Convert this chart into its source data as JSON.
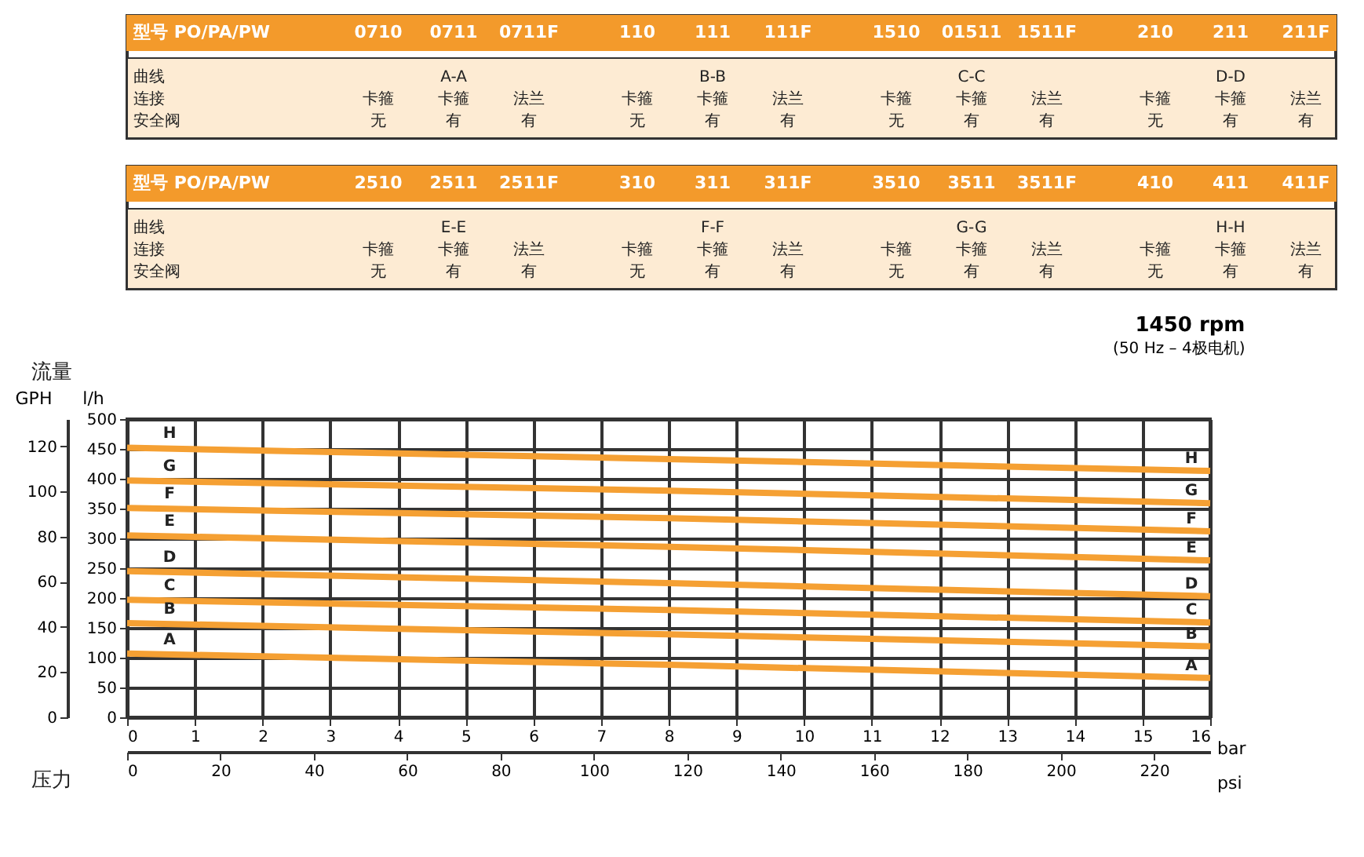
{
  "chart_data": [
    {
      "type": "other",
      "xlabel": "型号 PO/PA/PW",
      "categories": [
        "0710",
        "0711",
        "0711F",
        "110",
        "111",
        "111F",
        "1510",
        "01511",
        "1511F",
        "210",
        "211",
        "211F"
      ],
      "y_categories": [
        "曲线",
        "连接",
        "安全阀"
      ],
      "color": "#f39a2b",
      "cell_labels": [
        [
          null,
          "A-A",
          null,
          null,
          "B-B",
          null,
          null,
          "C-C",
          null,
          null,
          "D-D",
          null
        ],
        [
          "卡箍",
          "卡箍",
          "法兰",
          "卡箍",
          "卡箍",
          "法兰",
          "卡箍",
          "卡箍",
          "法兰",
          "卡箍",
          "卡箍",
          "法兰"
        ],
        [
          "无",
          "有",
          "有",
          "无",
          "有",
          "有",
          "无",
          "有",
          "有",
          "无",
          "有",
          "有"
        ]
      ]
    },
    {
      "type": "other",
      "xlabel": "型号 PO/PA/PW",
      "categories": [
        "2510",
        "2511",
        "2511F",
        "310",
        "311",
        "311F",
        "3510",
        "3511",
        "3511F",
        "410",
        "411",
        "411F"
      ],
      "y_categories": [
        "曲线",
        "连接",
        "安全阀"
      ],
      "color": "#f39a2b",
      "cell_labels": [
        [
          null,
          "E-E",
          null,
          null,
          "F-F",
          null,
          null,
          "G-G",
          null,
          null,
          "H-H",
          null
        ],
        [
          "卡箍",
          "卡箍",
          "法兰",
          "卡箍",
          "卡箍",
          "法兰",
          "卡箍",
          "卡箍",
          "法兰",
          "卡箍",
          "卡箍",
          "法兰"
        ],
        [
          "无",
          "有",
          "有",
          "无",
          "有",
          "有",
          "无",
          "有",
          "有",
          "无",
          "有",
          "有"
        ]
      ]
    },
    {
      "type": "line",
      "title": "1450 rpm",
      "subtitle": "(50 Hz – 4极电机)",
      "xlabel": "bar",
      "x2label": "psi",
      "ylabel": "l/h",
      "y2label": "GPH",
      "annotations": [
        "流量",
        "压力"
      ],
      "x": [
        0,
        8,
        16
      ],
      "xlim": [
        0,
        16
      ],
      "xticks": [
        0,
        1,
        2,
        3,
        4,
        5,
        6,
        7,
        8,
        9,
        10,
        11,
        12,
        13,
        14,
        15,
        16
      ],
      "x2lim": [
        0,
        232
      ],
      "x2ticks": [
        0,
        20,
        40,
        60,
        80,
        100,
        120,
        140,
        160,
        180,
        200,
        220
      ],
      "ylim": [
        0,
        500
      ],
      "yticks": [
        0,
        50,
        100,
        150,
        200,
        250,
        300,
        350,
        400,
        450,
        500
      ],
      "y2lim": [
        0,
        132
      ],
      "y2ticks": [
        0,
        20,
        40,
        60,
        80,
        100,
        120
      ],
      "grid": true,
      "legend": false,
      "series": [
        {
          "name": "A",
          "color": "#f5a033",
          "values": [
            107,
            88,
            66
          ]
        },
        {
          "name": "B",
          "color": "#f5a033",
          "values": [
            158,
            139,
            119
          ]
        },
        {
          "name": "C",
          "color": "#f5a033",
          "values": [
            197,
            180,
            159
          ]
        },
        {
          "name": "D",
          "color": "#f5a033",
          "values": [
            245,
            225,
            203
          ]
        },
        {
          "name": "E",
          "color": "#f5a033",
          "values": [
            305,
            286,
            263
          ]
        },
        {
          "name": "F",
          "color": "#f5a033",
          "values": [
            351,
            334,
            312
          ]
        },
        {
          "name": "G",
          "color": "#f5a033",
          "values": [
            397,
            380,
            359
          ]
        },
        {
          "name": "H",
          "color": "#f5a033",
          "values": [
            452,
            433,
            413
          ]
        }
      ]
    }
  ]
}
